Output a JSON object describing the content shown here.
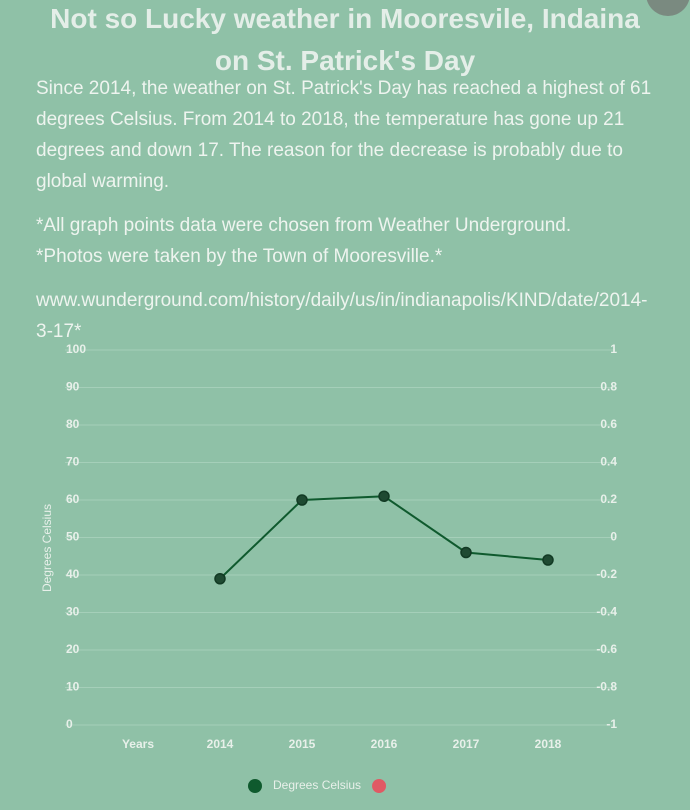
{
  "title": "Not so Lucky weather in Mooresvile, Indaina on St. Patrick's Day",
  "paragraphs": [
    [
      "Since 2014, the weather on St. Patrick's Day has reached a highest of 61 degrees Celsius. From 2014 to 2018, the temperature has gone up 21 degrees and down 17. The reason for the decrease is probably due to global warming."
    ],
    [
      "*All graph points data were chosen from Weather Underground.",
      "*Photos were taken by the Town of Mooresville.*"
    ],
    [
      " www.wunderground.com/history/daily/us/in/indianapolis/KIND/date/2014-3-17*"
    ]
  ],
  "chart_data": {
    "type": "line",
    "y_label": "Degrees Celsius",
    "categories": [
      "Years",
      "2014",
      "2015",
      "2016",
      "2017",
      "2018"
    ],
    "series": [
      {
        "name": "Degrees Celsius",
        "color": "#0f5a2e",
        "values": [
          null,
          39,
          60,
          61,
          46,
          44
        ]
      },
      {
        "name": null,
        "color": "#e05a64",
        "axis": "y2",
        "values": [
          null,
          null,
          null,
          null,
          null,
          null
        ]
      }
    ],
    "ylim": [
      0,
      100
    ],
    "yticks": [
      0,
      10,
      20,
      30,
      40,
      50,
      60,
      70,
      80,
      90,
      100
    ],
    "y2lim": [
      -1,
      1
    ],
    "y2ticks": [
      -1,
      -0.8,
      -0.6,
      -0.4,
      -0.2,
      0,
      0.2,
      0.4,
      0.6,
      0.8,
      1
    ],
    "grid": true
  }
}
